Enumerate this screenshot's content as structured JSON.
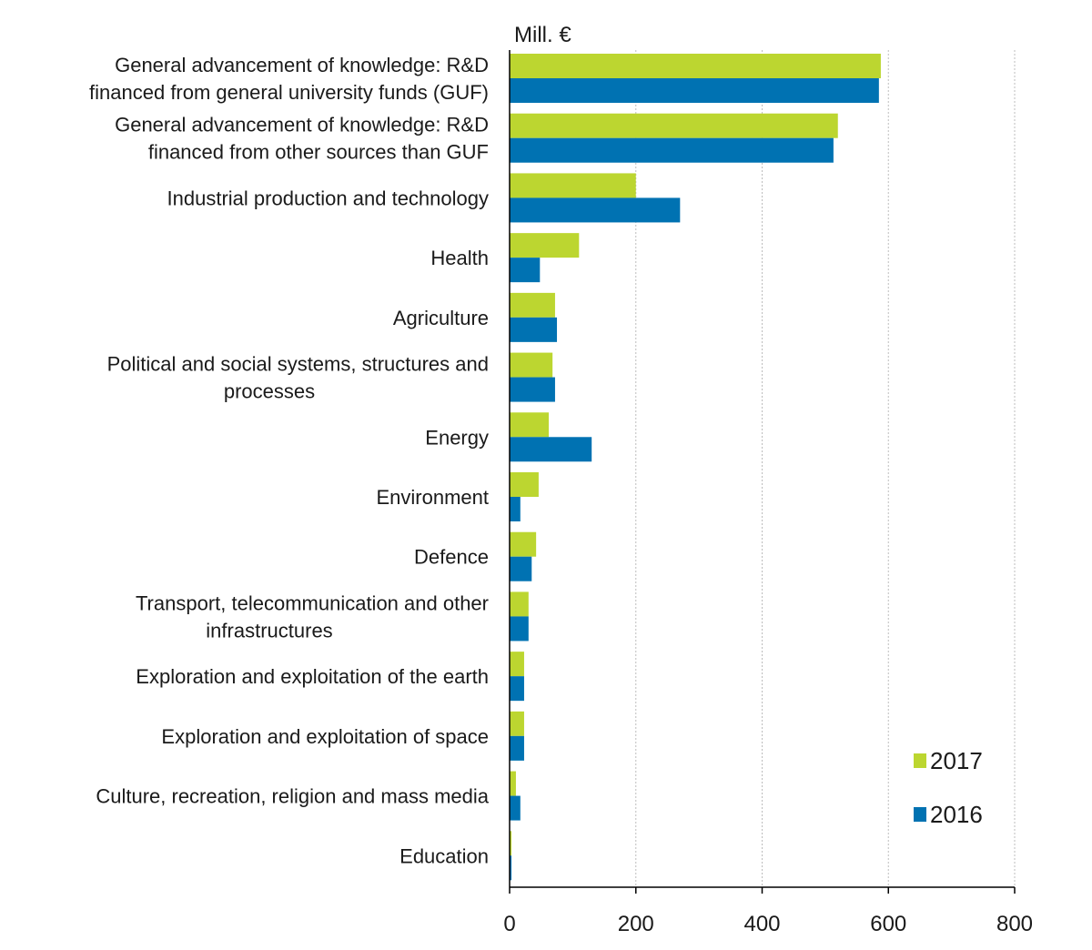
{
  "chart_data": {
    "type": "bar",
    "orientation": "horizontal",
    "unit_label": "Mill. €",
    "title": "",
    "xlabel": "",
    "ylabel": "",
    "xlim": [
      0,
      800
    ],
    "ticks": [
      0,
      200,
      400,
      600,
      800
    ],
    "grid": true,
    "legend_position": "bottom-right",
    "categories": [
      [
        "General advancement of knowledge: R&D",
        "financed from general university funds (GUF)"
      ],
      [
        "General advancement of knowledge: R&D",
        "financed from other sources than GUF"
      ],
      [
        "Industrial production and technology"
      ],
      [
        "Health"
      ],
      [
        "Agriculture"
      ],
      [
        "Political and social systems, structures and",
        "processes"
      ],
      [
        "Energy"
      ],
      [
        "Environment"
      ],
      [
        "Defence"
      ],
      [
        "Transport, telecommunication and other",
        "infrastructures"
      ],
      [
        "Exploration and exploitation of the earth"
      ],
      [
        "Exploration and exploitation of space"
      ],
      [
        "Culture, recreation, religion and mass media"
      ],
      [
        "Education"
      ]
    ],
    "series": [
      {
        "name": "2017",
        "color": "#bcd630",
        "values": [
          588,
          520,
          200,
          110,
          72,
          68,
          62,
          46,
          42,
          30,
          23,
          23,
          10,
          3
        ]
      },
      {
        "name": "2016",
        "color": "#0072b2",
        "values": [
          585,
          513,
          270,
          48,
          75,
          72,
          130,
          17,
          35,
          30,
          23,
          23,
          17,
          3
        ]
      }
    ]
  }
}
